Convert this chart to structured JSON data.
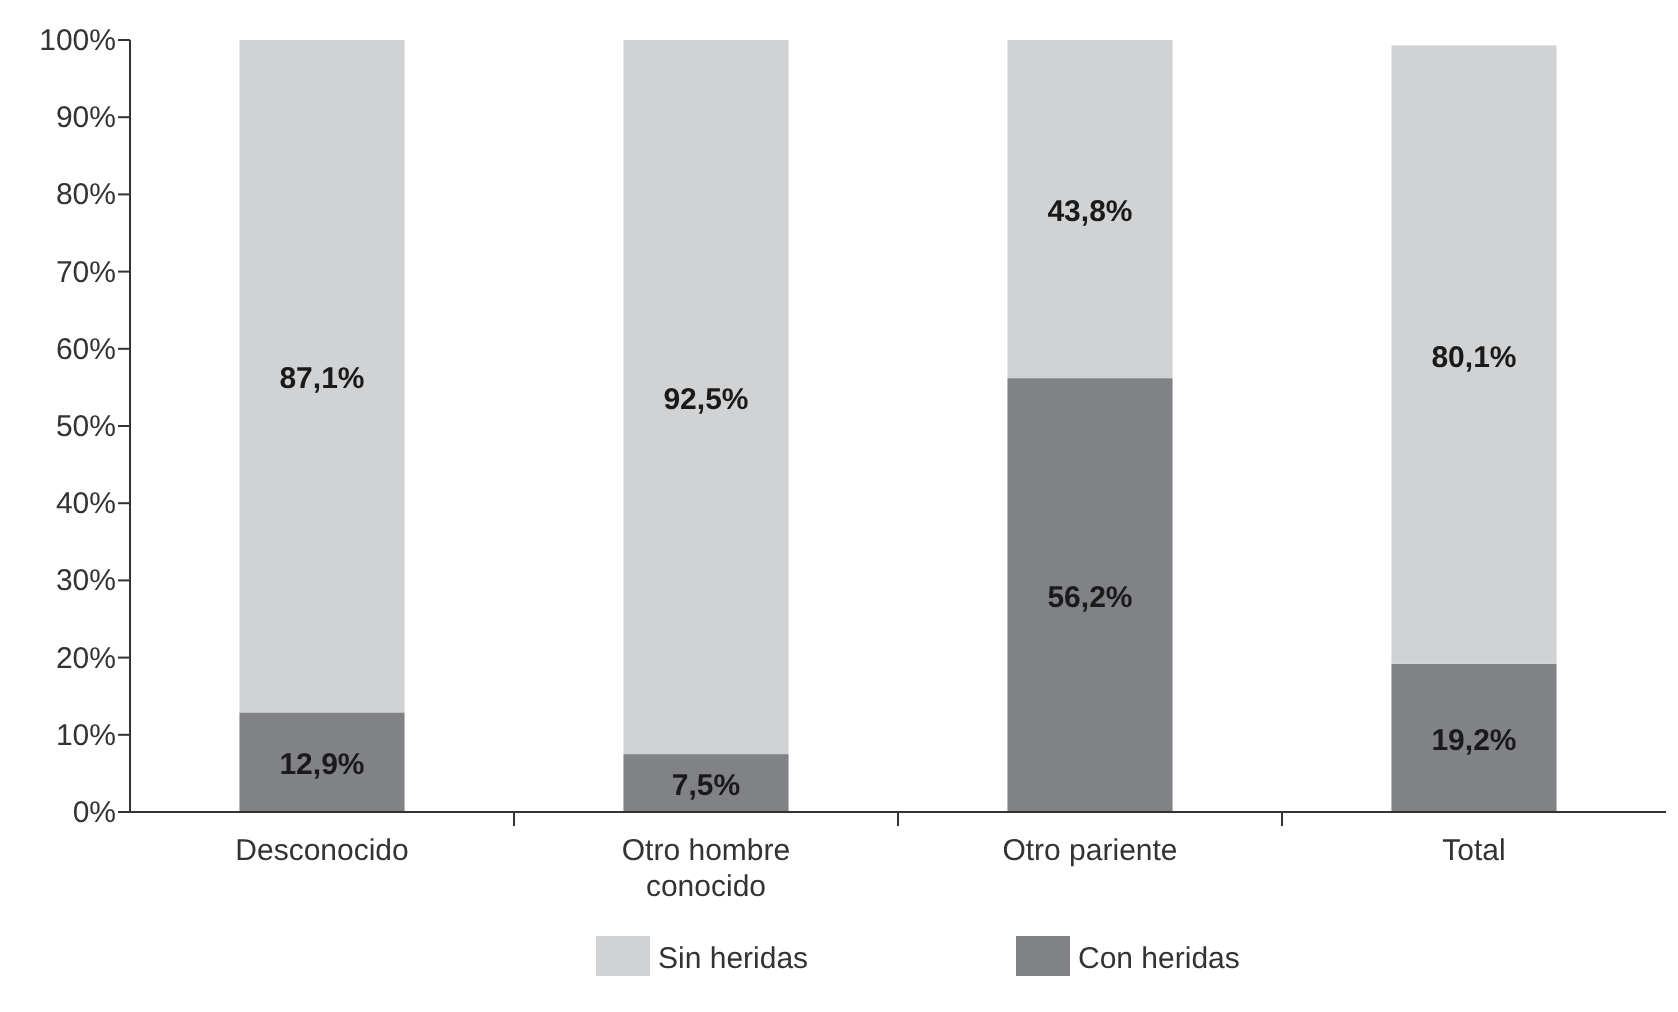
{
  "chart_data": {
    "type": "bar",
    "stacked": true,
    "categories": [
      "Desconocido",
      "Otro hombre conocido",
      "Otro pariente",
      "Total"
    ],
    "series": [
      {
        "name": "Con heridas",
        "color": "#818285",
        "values": [
          12.9,
          7.5,
          56.2,
          19.2
        ],
        "value_labels": [
          "12,9%",
          "7,5%",
          "56,2%",
          "19,2%"
        ]
      },
      {
        "name": "Sin heridas",
        "color": "#d1d2d4",
        "values": [
          87.1,
          92.5,
          43.8,
          80.1
        ],
        "value_labels": [
          "87,1%",
          "92,5%",
          "43,8%",
          "80,1%"
        ]
      }
    ],
    "ylim": [
      0,
      100
    ],
    "yticks": [
      {
        "value": 0,
        "label": "0%"
      },
      {
        "value": 10,
        "label": "10%"
      },
      {
        "value": 20,
        "label": "20%"
      },
      {
        "value": 30,
        "label": "30%"
      },
      {
        "value": 40,
        "label": "40%"
      },
      {
        "value": 50,
        "label": "50%"
      },
      {
        "value": 60,
        "label": "60%"
      },
      {
        "value": 70,
        "label": "70%"
      },
      {
        "value": 80,
        "label": "80%"
      },
      {
        "value": 90,
        "label": "90%"
      },
      {
        "value": 100,
        "label": "100%"
      }
    ],
    "grid": false,
    "legend": "bottom"
  }
}
